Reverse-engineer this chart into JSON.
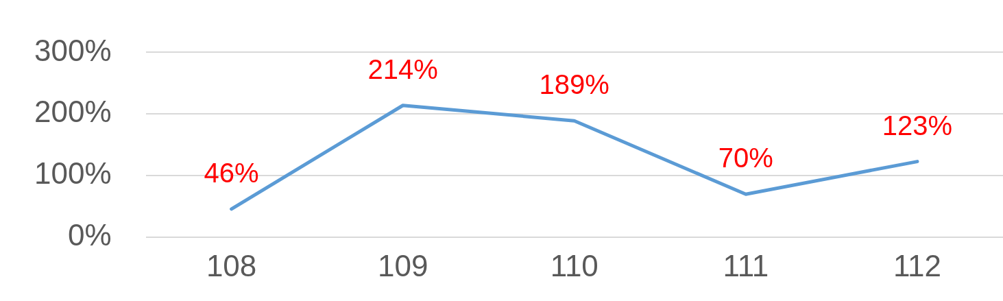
{
  "chart_data": {
    "type": "line",
    "categories": [
      "108",
      "109",
      "110",
      "111",
      "112"
    ],
    "series": [
      {
        "color": "#5b9bd5",
        "values": [
          46,
          214,
          189,
          70,
          123
        ],
        "value_labels": [
          "46%",
          "214%",
          "189%",
          "70%",
          "123%"
        ]
      }
    ],
    "ylim": [
      0,
      300
    ],
    "yticks": [
      {
        "value": 0,
        "label": "0%"
      },
      {
        "value": 100,
        "label": "100%"
      },
      {
        "value": 200,
        "label": "200%"
      },
      {
        "value": 300,
        "label": "300%"
      }
    ],
    "grid": "y",
    "legend": false,
    "marker": "none",
    "line_style": "solid"
  }
}
